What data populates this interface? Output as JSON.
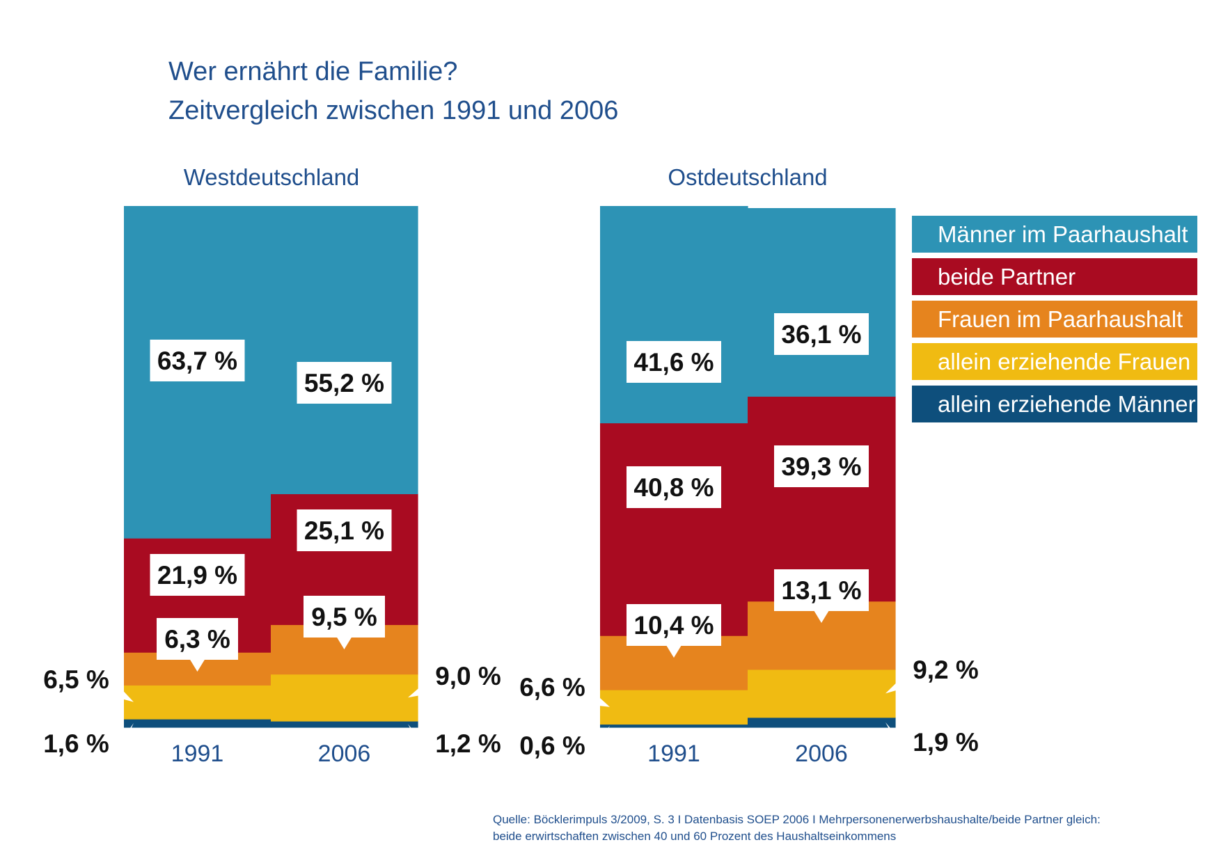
{
  "title": "Wer ernährt die Familie?",
  "subtitle": "Zeitvergleich zwischen 1991 und 2006",
  "source_line1": "Quelle: Böcklerimpuls 3/2009, S. 3 I Datenbasis SOEP 2006 I Mehrpersonenerwerbshaushalte/beide Partner gleich:",
  "source_line2": "beide erwirtschaften zwischen 40 und 60 Prozent des Haushaltseinkommens",
  "colors": {
    "maenner_paar": "#2d93b5",
    "beide": "#a90b21",
    "frauen_paar": "#e6841e",
    "allein_frauen": "#f0bb12",
    "allein_maenner": "#0e4f7c",
    "text_blue": "#1f4e8c"
  },
  "chart_data": {
    "type": "bar",
    "stacked": true,
    "unit": "%",
    "ylim": [
      0,
      100
    ],
    "legend_position": "right",
    "legend": [
      {
        "key": "maenner_paar",
        "label": "Männer im Paarhaushalt"
      },
      {
        "key": "beide",
        "label": "beide Partner"
      },
      {
        "key": "frauen_paar",
        "label": "Frauen im Paarhaushalt"
      },
      {
        "key": "allein_frauen",
        "label": "allein erziehende Frauen"
      },
      {
        "key": "allein_maenner",
        "label": "allein erziehende Männer"
      }
    ],
    "panels": [
      {
        "title": "Westdeutschland",
        "categories": [
          "1991",
          "2006"
        ],
        "series": [
          {
            "key": "allein_maenner",
            "name": "allein erziehende Männer",
            "values": [
              1.6,
              1.2
            ],
            "labels": [
              "1,6 %",
              "1,2 %"
            ]
          },
          {
            "key": "allein_frauen",
            "name": "allein erziehende Frauen",
            "values": [
              6.5,
              9.0
            ],
            "labels": [
              "6,5 %",
              "9,0 %"
            ]
          },
          {
            "key": "frauen_paar",
            "name": "Frauen im Paarhaushalt",
            "values": [
              6.3,
              9.5
            ],
            "labels": [
              "6,3 %",
              "9,5 %"
            ]
          },
          {
            "key": "beide",
            "name": "beide Partner",
            "values": [
              21.9,
              25.1
            ],
            "labels": [
              "21,9 %",
              "25,1 %"
            ]
          },
          {
            "key": "maenner_paar",
            "name": "Männer im Paarhaushalt",
            "values": [
              63.7,
              55.2
            ],
            "labels": [
              "63,7 %",
              "55,2 %"
            ]
          }
        ]
      },
      {
        "title": "Ostdeutschland",
        "categories": [
          "1991",
          "2006"
        ],
        "series": [
          {
            "key": "allein_maenner",
            "name": "allein erziehende Männer",
            "values": [
              0.6,
              1.9
            ],
            "labels": [
              "0,6 %",
              "1,9 %"
            ]
          },
          {
            "key": "allein_frauen",
            "name": "allein erziehende Frauen",
            "values": [
              6.6,
              9.2
            ],
            "labels": [
              "6,6 %",
              "9,2 %"
            ]
          },
          {
            "key": "frauen_paar",
            "name": "Frauen im Paarhaushalt",
            "values": [
              10.4,
              13.1
            ],
            "labels": [
              "10,4 %",
              "13,1 %"
            ]
          },
          {
            "key": "beide",
            "name": "beide Partner",
            "values": [
              40.8,
              39.3
            ],
            "labels": [
              "40,8 %",
              "39,3 %"
            ]
          },
          {
            "key": "maenner_paar",
            "name": "Männer im Paarhaushalt",
            "values": [
              41.6,
              36.1
            ],
            "labels": [
              "41,6 %",
              "36,1 %"
            ]
          }
        ]
      }
    ]
  }
}
